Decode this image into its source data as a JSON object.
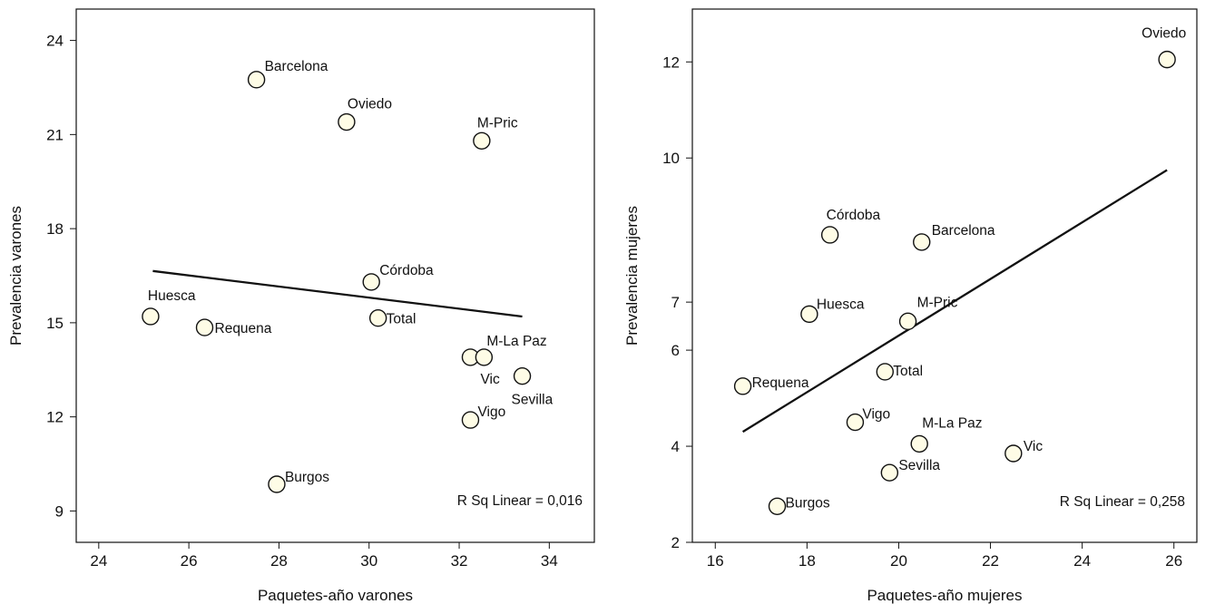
{
  "chart_data": [
    {
      "type": "scatter",
      "xlabel": "Paquetes-año varones",
      "ylabel": "Prevalencia varones",
      "xlim": [
        23.5,
        35.0
      ],
      "ylim": [
        8.0,
        25.0
      ],
      "xticks": [
        24,
        26,
        28,
        30,
        32,
        34
      ],
      "xtick_labels": [
        "24",
        "26",
        "28",
        "30",
        "32",
        "34"
      ],
      "yticks": [
        9,
        12,
        15,
        18,
        21,
        24
      ],
      "ytick_labels": [
        "9",
        "12",
        "15",
        "18",
        "21",
        "24"
      ],
      "grid": false,
      "points": [
        {
          "label": "Barcelona",
          "x": 27.5,
          "y": 22.75
        },
        {
          "label": "Oviedo",
          "x": 29.5,
          "y": 21.4
        },
        {
          "label": "M-Pric",
          "x": 32.5,
          "y": 20.8
        },
        {
          "label": "Córdoba",
          "x": 30.05,
          "y": 16.3
        },
        {
          "label": "Huesca",
          "x": 25.15,
          "y": 15.2
        },
        {
          "label": "Requena",
          "x": 26.35,
          "y": 14.85
        },
        {
          "label": "Total",
          "x": 30.2,
          "y": 15.15
        },
        {
          "label": "Vic",
          "x": 32.25,
          "y": 13.9
        },
        {
          "label": "M-La Paz",
          "x": 32.55,
          "y": 13.9
        },
        {
          "label": "Sevilla",
          "x": 33.4,
          "y": 13.3
        },
        {
          "label": "Vigo",
          "x": 32.25,
          "y": 11.9
        },
        {
          "label": "Burgos",
          "x": 27.95,
          "y": 9.85
        }
      ],
      "fit_line": {
        "x": [
          25.2,
          33.4
        ],
        "y": [
          16.65,
          15.2
        ]
      },
      "annotation": "R Sq Linear = 0,016"
    },
    {
      "type": "scatter",
      "xlabel": "Paquetes-año mujeres",
      "ylabel": "Prevalencia mujeres",
      "xlim": [
        15.5,
        26.5
      ],
      "ylim": [
        2.0,
        13.1
      ],
      "xticks": [
        16,
        18,
        20,
        22,
        24,
        26
      ],
      "xtick_labels": [
        "16",
        "18",
        "20",
        "22",
        "24",
        "26"
      ],
      "yticks": [
        2,
        4,
        6,
        7,
        10,
        12
      ],
      "ytick_labels": [
        "2",
        "4",
        "6",
        "7",
        "10",
        "12"
      ],
      "grid": false,
      "points": [
        {
          "label": "Oviedo",
          "x": 25.85,
          "y": 12.05
        },
        {
          "label": "Córdoba",
          "x": 18.5,
          "y": 8.4
        },
        {
          "label": "Barcelona",
          "x": 20.5,
          "y": 8.25
        },
        {
          "label": "Huesca",
          "x": 18.05,
          "y": 6.75
        },
        {
          "label": "M-Pric",
          "x": 20.2,
          "y": 6.6
        },
        {
          "label": "Requena",
          "x": 16.6,
          "y": 5.25
        },
        {
          "label": "Total",
          "x": 19.7,
          "y": 5.55
        },
        {
          "label": "Vigo",
          "x": 19.05,
          "y": 4.5
        },
        {
          "label": "M-La Paz",
          "x": 20.45,
          "y": 4.05
        },
        {
          "label": "Vic",
          "x": 22.5,
          "y": 3.85
        },
        {
          "label": "Sevilla",
          "x": 19.8,
          "y": 3.45
        },
        {
          "label": "Burgos",
          "x": 17.35,
          "y": 2.75
        }
      ],
      "fit_line": {
        "x": [
          16.6,
          25.85
        ],
        "y": [
          4.3,
          9.75
        ]
      },
      "annotation": "R Sq Linear = 0,258"
    }
  ]
}
